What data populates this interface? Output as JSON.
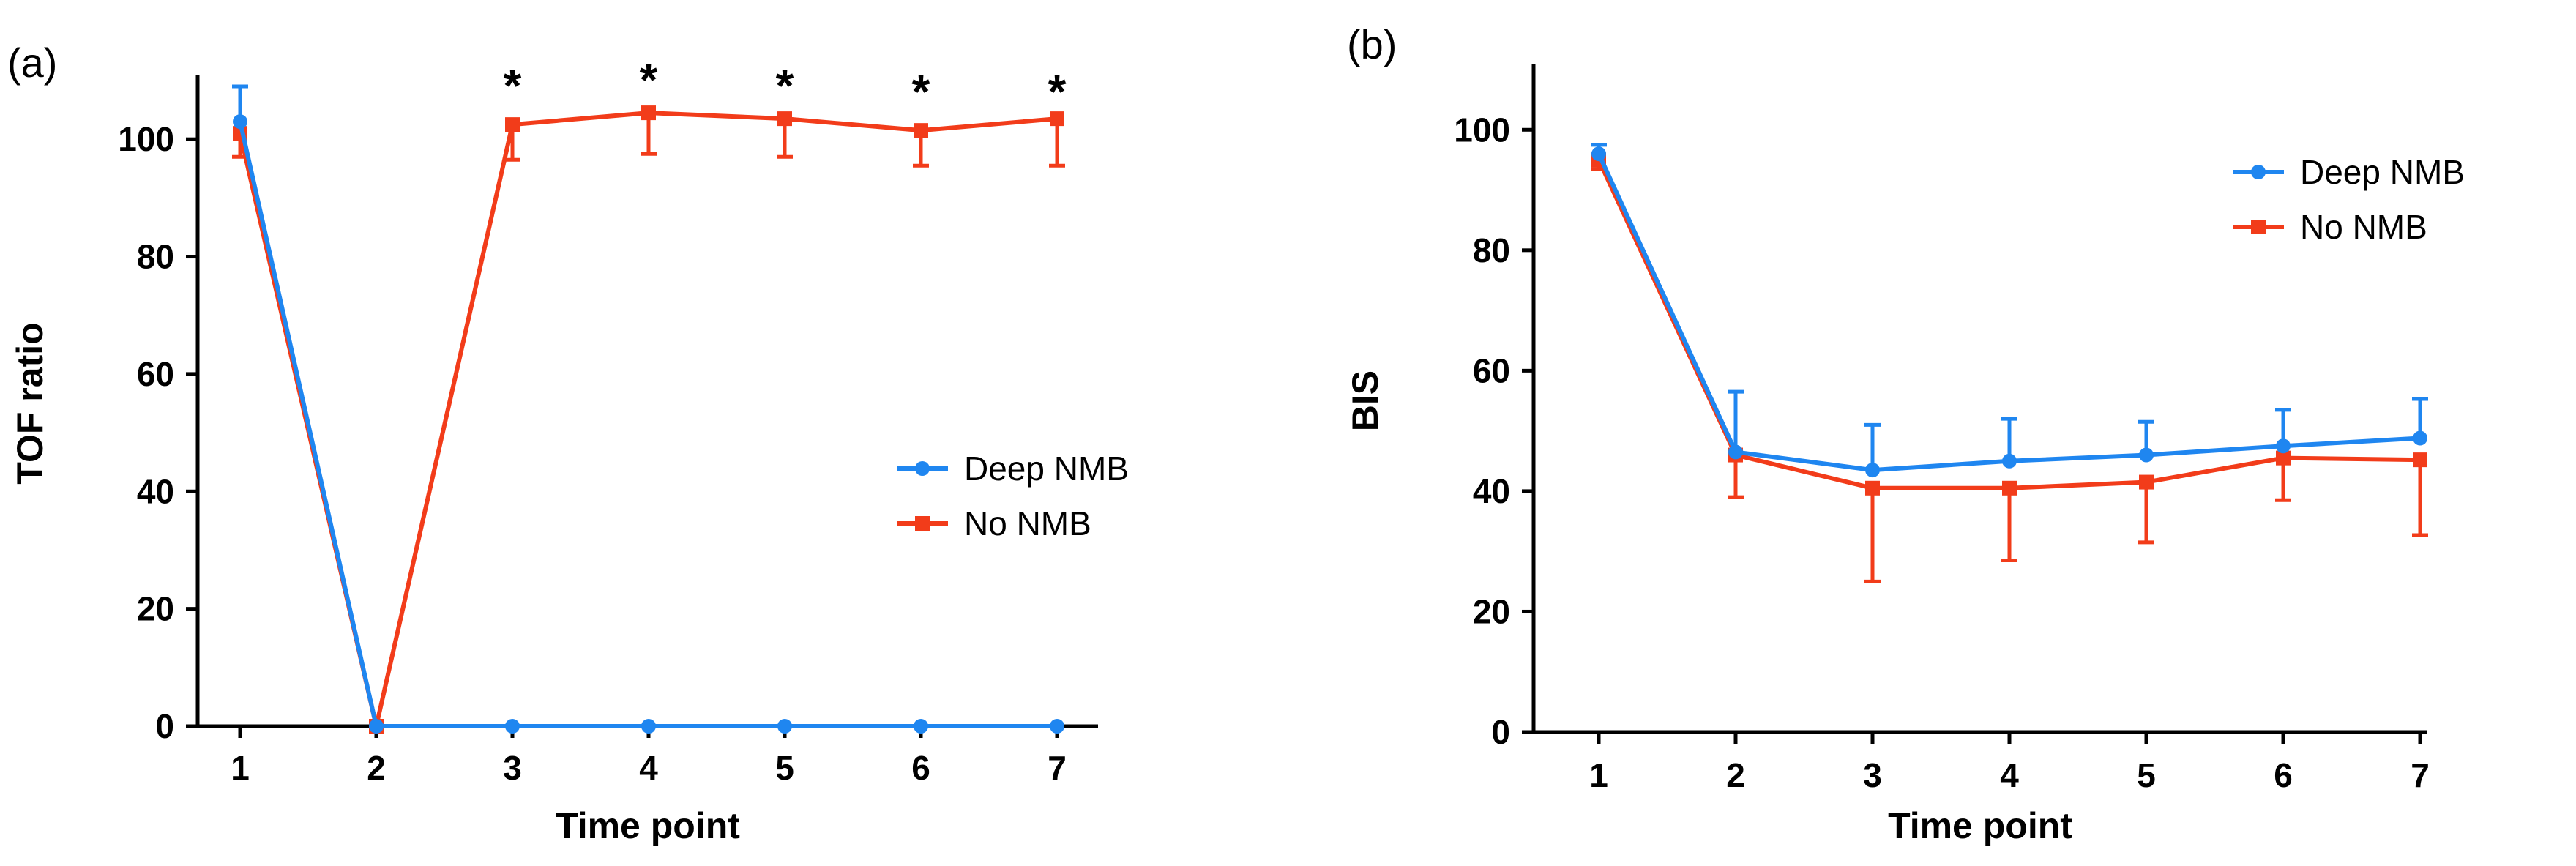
{
  "colors": {
    "deep": "#1f86f0",
    "no": "#f23c1a",
    "axis": "#000000"
  },
  "chart_data": [
    {
      "type": "line",
      "panel_label": "(a)",
      "title": "",
      "xlabel": "Time point",
      "ylabel": "TOF ratio",
      "categories": [
        "1",
        "2",
        "3",
        "4",
        "5",
        "6",
        "7"
      ],
      "ylim": [
        0,
        110
      ],
      "yticks": [
        "0",
        "20",
        "40",
        "60",
        "80",
        "100"
      ],
      "legend_position": "right-middle",
      "series": [
        {
          "name": "Deep NMB",
          "marker": "circle",
          "values": [
            103,
            0,
            0,
            0,
            0,
            0,
            0
          ],
          "errors": [
            6,
            0,
            0,
            0,
            0,
            0,
            0
          ]
        },
        {
          "name": "No NMB",
          "marker": "square",
          "values": [
            101,
            0,
            102.5,
            104.5,
            103.5,
            101.5,
            103.5
          ],
          "errors": [
            4,
            0,
            6,
            7,
            6.5,
            6,
            8
          ]
        }
      ],
      "error_direction": {
        "Deep NMB": "up",
        "No NMB": "down"
      },
      "annotations": [
        {
          "x": "3",
          "y": 112,
          "text": "*"
        },
        {
          "x": "4",
          "y": 113,
          "text": "*"
        },
        {
          "x": "5",
          "y": 112,
          "text": "*"
        },
        {
          "x": "6",
          "y": 111,
          "text": "*"
        },
        {
          "x": "7",
          "y": 111,
          "text": "*"
        }
      ]
    },
    {
      "type": "line",
      "panel_label": "(b)",
      "title": "",
      "xlabel": "Time point",
      "ylabel": "BIS",
      "categories": [
        "1",
        "2",
        "3",
        "4",
        "5",
        "6",
        "7"
      ],
      "ylim": [
        0,
        110
      ],
      "yticks": [
        "0",
        "20",
        "40",
        "60",
        "80",
        "100"
      ],
      "legend_position": "top-right",
      "series": [
        {
          "name": "Deep NMB",
          "marker": "circle",
          "values": [
            96,
            46.5,
            43.5,
            45,
            46,
            47.5,
            48.8
          ],
          "errors": [
            1.5,
            10,
            7.5,
            7,
            5.5,
            6,
            6.5
          ]
        },
        {
          "name": "No NMB",
          "marker": "square",
          "values": [
            95,
            46,
            40.5,
            40.5,
            41.5,
            45.5,
            45.2
          ],
          "errors": [
            1.5,
            7,
            15.5,
            12,
            10,
            7,
            12.5
          ]
        }
      ],
      "error_direction": {
        "Deep NMB": "up",
        "No NMB": "down"
      },
      "annotations": []
    }
  ]
}
